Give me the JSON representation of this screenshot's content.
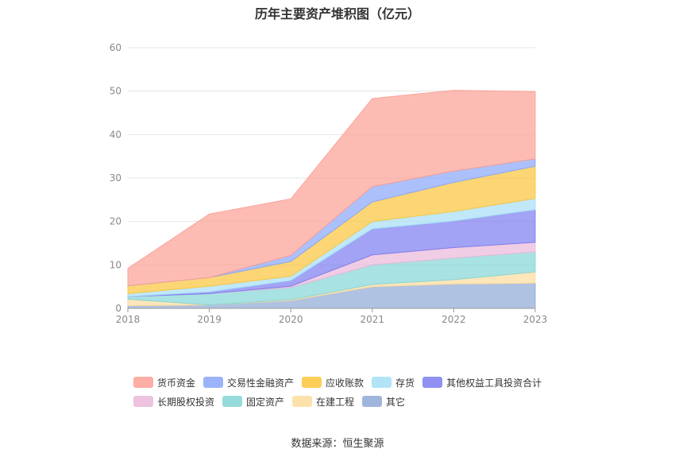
{
  "chart_data": {
    "type": "area",
    "stacked": true,
    "title": "历年主要资产堆积图（亿元）",
    "xlabel": "",
    "ylabel": "",
    "x": [
      "2018",
      "2019",
      "2020",
      "2021",
      "2022",
      "2023"
    ],
    "ylim": [
      0,
      60
    ],
    "yticks": [
      0,
      10,
      20,
      30,
      40,
      50,
      60
    ],
    "grid": true,
    "legend_position": "bottom",
    "series": [
      {
        "name": "其它",
        "color": "#8fa8d6",
        "values": [
          0.6,
          0.8,
          1.8,
          5.0,
          5.6,
          5.8
        ]
      },
      {
        "name": "在建工程",
        "color": "#fcdc9c",
        "values": [
          1.5,
          0.0,
          0.2,
          0.5,
          1.0,
          2.6
        ]
      },
      {
        "name": "固定资产",
        "color": "#84d5d5",
        "values": [
          0.6,
          2.6,
          2.8,
          4.5,
          5.0,
          4.6
        ]
      },
      {
        "name": "长期股权投资",
        "color": "#eab8d9",
        "values": [
          0.0,
          0.0,
          0.3,
          2.3,
          2.4,
          2.2
        ]
      },
      {
        "name": "其他权益工具投资合计",
        "color": "#7b7cf0",
        "values": [
          0.0,
          0.4,
          1.3,
          6.0,
          6.1,
          7.5
        ]
      },
      {
        "name": "存货",
        "color": "#a5def5",
        "values": [
          0.7,
          1.3,
          1.0,
          1.7,
          2.2,
          2.6
        ]
      },
      {
        "name": "应收账款",
        "color": "#fbc53a",
        "values": [
          1.8,
          2.0,
          3.4,
          4.5,
          6.7,
          7.4
        ]
      },
      {
        "name": "交易性金融资产",
        "color": "#89a6fa",
        "values": [
          0.0,
          0.0,
          1.4,
          3.5,
          2.6,
          1.7
        ]
      },
      {
        "name": "货币资金",
        "color": "#fb9f94",
        "values": [
          4.0,
          14.6,
          13.0,
          20.3,
          18.6,
          15.5
        ]
      }
    ],
    "legend_order": [
      "货币资金",
      "交易性金融资产",
      "应收账款",
      "存货",
      "其他权益工具投资合计",
      "长期股权投资",
      "固定资产",
      "在建工程",
      "其它"
    ]
  },
  "source_label": "数据来源：恒生聚源"
}
